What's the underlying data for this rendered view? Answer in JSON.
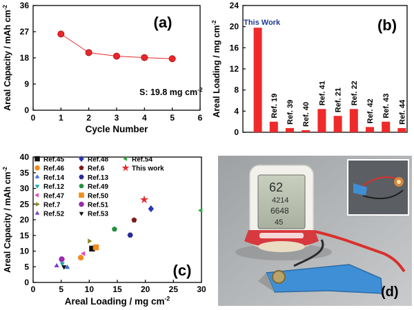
{
  "chart_data": [
    {
      "panel": "(a)",
      "type": "line",
      "xlabel": "Cycle Number",
      "ylabel": "Areal Capacity / mAh cm",
      "ylabel_sup": "-2",
      "x": [
        1,
        2,
        3,
        4,
        5
      ],
      "values": [
        26.2,
        19.8,
        18.6,
        18.1,
        17.7
      ],
      "xlim": [
        0,
        6
      ],
      "ylim": [
        0,
        36
      ],
      "xticks": [
        "0",
        "1",
        "2",
        "3",
        "4",
        "5",
        "6"
      ],
      "yticks": [
        "0",
        "9",
        "18",
        "27",
        "36"
      ],
      "annotation": "S: 19.8 mg cm",
      "annotation_sup": "-2",
      "series_color": "#e8272a"
    },
    {
      "panel": "(b)",
      "type": "bar",
      "ylabel": "Areal Loading / mg cm",
      "ylabel_sup": "-2",
      "categories": [
        "This Work",
        "Ref. 19",
        "Ref. 39",
        "Ref. 40",
        "Ref. 41",
        "Ref. 21",
        "Ref. 22",
        "Ref. 42",
        "Ref. 43",
        "Ref. 44"
      ],
      "values": [
        19.8,
        2.0,
        0.8,
        0.4,
        4.4,
        3.1,
        4.4,
        1.0,
        2.0,
        0.8
      ],
      "ylim": [
        0,
        24
      ],
      "yticks": [
        "0",
        "4",
        "8",
        "12",
        "16",
        "20",
        "24"
      ],
      "bar_color": "#ee2a2a",
      "highlight_color": "#1f3a93"
    },
    {
      "panel": "(c)",
      "type": "scatter",
      "xlabel": "Areal Loading / mg cm",
      "xlabel_sup": "-2",
      "ylabel": "Areal Capacity / mAh cm",
      "ylabel_sup": "-2",
      "xlim": [
        0,
        30
      ],
      "ylim": [
        0,
        40
      ],
      "xticks": [
        "0",
        "5",
        "10",
        "15",
        "20",
        "25",
        "30"
      ],
      "yticks": [
        "0",
        "5",
        "10",
        "15",
        "20",
        "25",
        "30",
        "35",
        "40"
      ],
      "series": [
        {
          "name": "Ref.45",
          "marker": "square",
          "color": "#111111",
          "x": 10.5,
          "y": 10.8
        },
        {
          "name": "Ref.46",
          "marker": "circle",
          "color": "#f28c1e",
          "x": 8.5,
          "y": 7.9
        },
        {
          "name": "Ref.14",
          "marker": "triangle-up",
          "color": "#3b6fe0",
          "x": 6.1,
          "y": 4.8
        },
        {
          "name": "Ref.12",
          "marker": "triangle-down",
          "color": "#1aa7a7",
          "x": 5.2,
          "y": 6.0
        },
        {
          "name": "Ref.47",
          "marker": "triangle-left",
          "color": "#e04ac0",
          "x": 9.0,
          "y": 9.2
        },
        {
          "name": "Ref.7",
          "marker": "triangle-right",
          "color": "#8a8a1e",
          "x": 10.0,
          "y": 13.2
        },
        {
          "name": "Ref.52",
          "marker": "triangle-up",
          "color": "#7a3fc6",
          "x": 4.2,
          "y": 5.3
        },
        {
          "name": "Ref.48",
          "marker": "diamond",
          "color": "#2a35b5",
          "x": 21.0,
          "y": 23.5
        },
        {
          "name": "Ref.6",
          "marker": "pentagon",
          "color": "#7a1a1a",
          "x": 18.0,
          "y": 19.9
        },
        {
          "name": "Ref.13",
          "marker": "hexagon",
          "color": "#2a2a9a",
          "x": 17.3,
          "y": 15.1
        },
        {
          "name": "Ref.49",
          "marker": "pentagon",
          "color": "#1f8f3a",
          "x": 14.5,
          "y": 17.0
        },
        {
          "name": "Ref.50",
          "marker": "square",
          "color": "#f28c1e",
          "x": 11.2,
          "y": 11.2
        },
        {
          "name": "Ref.51",
          "marker": "circle",
          "color": "#9a2ab0",
          "x": 5.1,
          "y": 7.4
        },
        {
          "name": "Ref.53",
          "marker": "triangle-down",
          "color": "#111111",
          "x": 5.5,
          "y": 5.0
        },
        {
          "name": "Ref.54",
          "marker": "triangle-left",
          "color": "#2aa63a",
          "x": 29.9,
          "y": 23.0
        },
        {
          "name": "This work",
          "marker": "star",
          "color": "#e8272a",
          "x": 19.8,
          "y": 26.4
        }
      ]
    }
  ],
  "photo": {
    "panel": "(d)",
    "display_readings": [
      "62",
      "4214",
      "6648",
      "45"
    ]
  }
}
